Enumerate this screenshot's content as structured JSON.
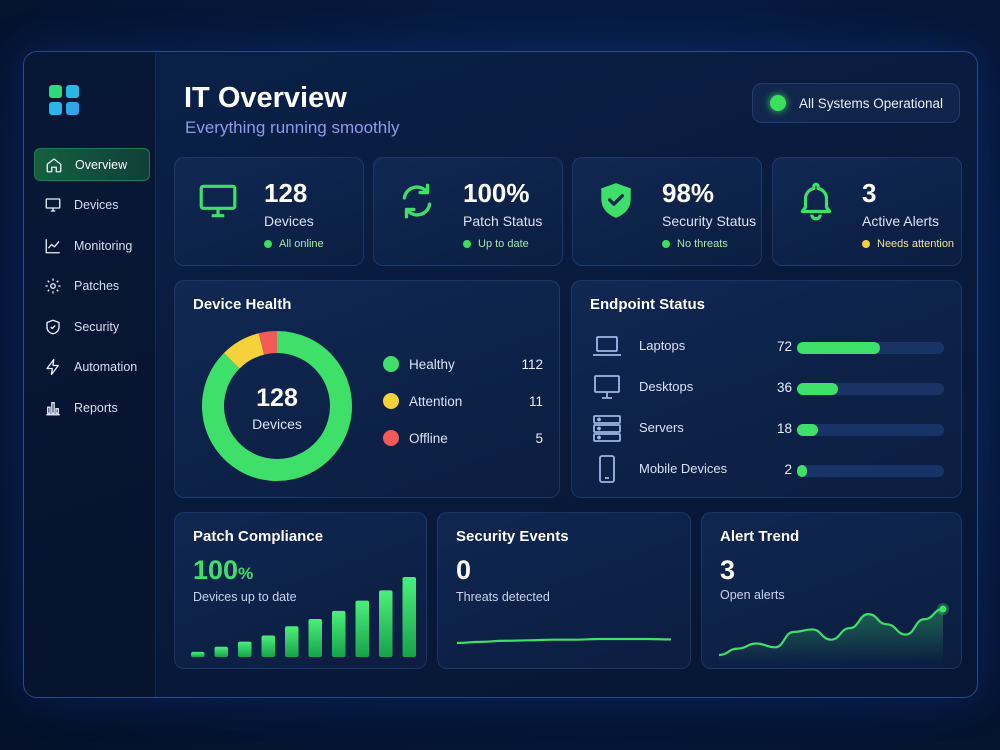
{
  "header": {
    "title": "IT Overview",
    "subtitle": "Everything running smoothly"
  },
  "status": {
    "label": "All Systems Operational",
    "color": "#3be05c"
  },
  "logo": {
    "colors": [
      "#2fd87a",
      "#2bb6e8",
      "#2bb6e8",
      "#2fa6e8"
    ]
  },
  "sidebar": {
    "items": [
      {
        "label": "Overview",
        "icon": "home-icon",
        "active": true
      },
      {
        "label": "Devices",
        "icon": "monitor-icon"
      },
      {
        "label": "Monitoring",
        "icon": "chart-line-icon"
      },
      {
        "label": "Patches",
        "icon": "gear-icon"
      },
      {
        "label": "Security",
        "icon": "shield-icon"
      },
      {
        "label": "Automation",
        "icon": "bolt-icon"
      },
      {
        "label": "Reports",
        "icon": "bar-chart-icon"
      }
    ]
  },
  "kpis": [
    {
      "value": "128",
      "label": "Devices",
      "note": "All online",
      "note_color": "#3be05c",
      "icon": "monitor-icon"
    },
    {
      "value": "100%",
      "label": "Patch Status",
      "note": "Up to date",
      "note_color": "#3be05c",
      "icon": "refresh-icon"
    },
    {
      "value": "98%",
      "label": "Security Status",
      "note": "No threats",
      "note_color": "#3be05c",
      "icon": "shield-check-icon"
    },
    {
      "value": "3",
      "label": "Active Alerts",
      "note": "Needs attention",
      "note_color": "#f5d23a",
      "icon": "bell-icon"
    }
  ],
  "device_health": {
    "title": "Device Health",
    "center_value": "128",
    "center_label": "Devices",
    "segments": [
      {
        "label": "Healthy",
        "value": 112,
        "color": "#3fe06a"
      },
      {
        "label": "Attention",
        "value": 11,
        "color": "#f5d23a"
      },
      {
        "label": "Offline",
        "value": 5,
        "color": "#f25a5a"
      }
    ]
  },
  "endpoint_status": {
    "title": "Endpoint Status",
    "max": 128,
    "rows": [
      {
        "label": "Laptops",
        "count": 72,
        "icon": "laptop-icon"
      },
      {
        "label": "Desktops",
        "count": 36,
        "icon": "desktop-icon"
      },
      {
        "label": "Servers",
        "count": 18,
        "icon": "server-icon"
      },
      {
        "label": "Mobile Devices",
        "count": 2,
        "icon": "mobile-icon"
      }
    ]
  },
  "patch_compliance": {
    "title": "Patch Compliance",
    "value": "100",
    "unit": "%",
    "subtitle": "Devices up to date",
    "bars": [
      5,
      10,
      15,
      21,
      30,
      37,
      45,
      55,
      65,
      78
    ]
  },
  "security_events": {
    "title": "Security Events",
    "value": "0",
    "subtitle": "Threats detected",
    "trend": [
      0,
      0.5,
      1,
      1.2,
      1.5,
      1.5,
      1.8,
      1.8,
      1.8,
      1.6
    ]
  },
  "alert_trend": {
    "title": "Alert Trend",
    "value": "3",
    "subtitle": "Open alerts",
    "trend": [
      4,
      9,
      13,
      10,
      22,
      24,
      16,
      25,
      36,
      28,
      20,
      32,
      40
    ]
  }
}
